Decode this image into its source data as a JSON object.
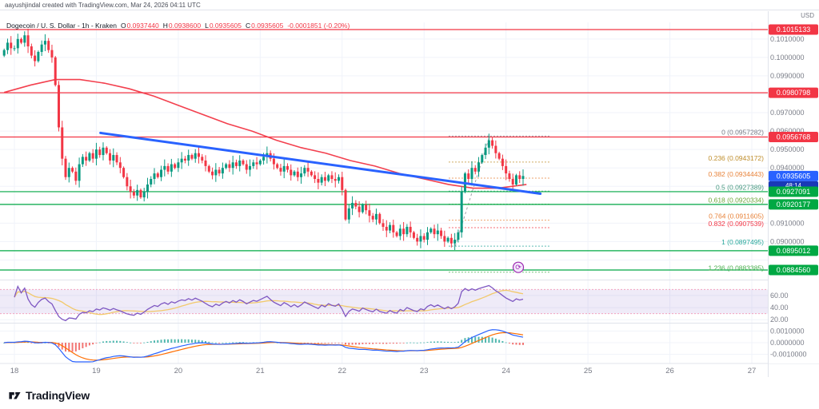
{
  "attribution": "aayushjindal created with TradingView.com, Mar 24, 2026 04:11 UTC",
  "legend": {
    "title": "Dogecoin / U. S. Dollar - 1h - Kraken",
    "ohlc": [
      {
        "label": "O",
        "value": "0.0937440"
      },
      {
        "label": "H",
        "value": "0.0938600"
      },
      {
        "label": "L",
        "value": "0.0935605"
      },
      {
        "label": "C",
        "value": "0.0935605"
      }
    ],
    "change": "-0.0001851 (-0.20%)"
  },
  "price_scale": {
    "currency": "USD",
    "ticks": [
      0.101,
      0.1,
      0.099,
      0.097,
      0.096,
      0.095,
      0.094,
      0.093,
      0.091,
      0.09
    ],
    "rsi_ticks": [
      {
        "v": 60,
        "label": "60.00"
      },
      {
        "v": 40,
        "label": "40.00"
      },
      {
        "v": 20,
        "label": "20.00"
      }
    ],
    "macd_ticks": [
      {
        "v": 0.001,
        "label": "0.0010000"
      },
      {
        "v": 0,
        "label": "0.0000000"
      },
      {
        "v": -0.001,
        "label": "-0.0010000"
      }
    ],
    "badges": [
      {
        "name": "badge-resistance-1",
        "value": "0.1015133",
        "price": 0.1015133,
        "color": "#f23645"
      },
      {
        "name": "badge-resistance-2",
        "value": "0.0980798",
        "price": 0.0980798,
        "color": "#f23645"
      },
      {
        "name": "badge-resistance-3",
        "value": "0.0956768",
        "price": 0.0956768,
        "color": "#f23645"
      },
      {
        "name": "badge-last-price",
        "value": "0.0935605",
        "price": 0.0935605,
        "color": "#2962ff",
        "countdown": "48:14",
        "countdown_bg": "#1939b7"
      },
      {
        "name": "badge-support-1",
        "value": "0.0927091",
        "price": 0.0927091,
        "color": "#00a843"
      },
      {
        "name": "badge-support-2",
        "value": "0.0920177",
        "price": 0.0920177,
        "color": "#00a843"
      },
      {
        "name": "badge-support-3",
        "value": "0.0895012",
        "price": 0.0895012,
        "color": "#00a843"
      },
      {
        "name": "badge-support-4",
        "value": "0.0884560",
        "price": 0.088456,
        "color": "#00a843"
      }
    ]
  },
  "time_scale": {
    "labels": [
      "18",
      "19",
      "20",
      "21",
      "22",
      "23",
      "24",
      "25",
      "26",
      "27"
    ]
  },
  "chart_data": {
    "type": "candlestick",
    "title": "Dogecoin / U. S. Dollar - 1h - Kraken",
    "interval": "1h",
    "x_axis_days": [
      18,
      27
    ],
    "price_range_visible": [
      0.0878,
      0.1019
    ],
    "t0": 17.875,
    "candles_per_day": 24,
    "first_open": 0.1001,
    "closes": [
      0.1004,
      0.1008,
      0.1005,
      0.1005,
      0.101,
      0.1008,
      0.1012,
      0.1006,
      0.1001,
      0.0998,
      0.1003,
      0.1007,
      0.1009,
      0.1004,
      0.1,
      0.0985,
      0.0962,
      0.0945,
      0.0935,
      0.094,
      0.0938,
      0.0933,
      0.0942,
      0.0946,
      0.0944,
      0.0948,
      0.0945,
      0.095,
      0.0947,
      0.0951,
      0.0948,
      0.0944,
      0.0947,
      0.0943,
      0.094,
      0.0935,
      0.093,
      0.0927,
      0.0925,
      0.0928,
      0.0924,
      0.0927,
      0.0931,
      0.0934,
      0.0937,
      0.0935,
      0.0939,
      0.0941,
      0.0938,
      0.0942,
      0.094,
      0.0943,
      0.0945,
      0.0944,
      0.0947,
      0.0945,
      0.0948,
      0.0946,
      0.0944,
      0.0941,
      0.0938,
      0.0936,
      0.0939,
      0.0937,
      0.094,
      0.0942,
      0.094,
      0.0943,
      0.0941,
      0.0944,
      0.0942,
      0.0939,
      0.0941,
      0.0943,
      0.0942,
      0.0944,
      0.0946,
      0.0948,
      0.0945,
      0.0942,
      0.094,
      0.0938,
      0.0941,
      0.0939,
      0.0936,
      0.0938,
      0.0935,
      0.0937,
      0.094,
      0.0938,
      0.0936,
      0.0934,
      0.0932,
      0.0935,
      0.0933,
      0.0936,
      0.0934,
      0.0933,
      0.0935,
      0.0928,
      0.0912,
      0.0918,
      0.0921,
      0.0919,
      0.0916,
      0.092,
      0.0917,
      0.0914,
      0.0912,
      0.0915,
      0.091,
      0.0908,
      0.0906,
      0.0909,
      0.0905,
      0.0903,
      0.0907,
      0.0904,
      0.0908,
      0.0905,
      0.0902,
      0.09,
      0.0903,
      0.0901,
      0.0905,
      0.0907,
      0.0904,
      0.0906,
      0.0903,
      0.09,
      0.0902,
      0.0899,
      0.0901,
      0.0905,
      0.0927,
      0.0937,
      0.0934,
      0.094,
      0.0938,
      0.0943,
      0.0947,
      0.0951,
      0.0955,
      0.0952,
      0.0948,
      0.0945,
      0.0941,
      0.0937,
      0.0934,
      0.0931,
      0.0936,
      0.0934,
      0.0935605
    ],
    "candle_colors": {
      "up": "#089981",
      "down": "#f23645"
    },
    "levels": {
      "resistance": [
        {
          "price": 0.1015133,
          "color": "#f23645"
        },
        {
          "price": 0.0980798,
          "color": "#f23645"
        },
        {
          "price": 0.0956768,
          "color": "#f23645"
        }
      ],
      "support": [
        {
          "price": 0.0927091,
          "color": "#00a843"
        },
        {
          "price": 0.0920177,
          "color": "#00a843"
        },
        {
          "price": 0.0895012,
          "color": "#00a843"
        },
        {
          "price": 0.088456,
          "color": "#00a843"
        }
      ]
    },
    "fib_levels": [
      {
        "label": "0 (0.0957282)",
        "price": 0.0957282,
        "color": "#787b86"
      },
      {
        "label": "0.236 (0.0943172)",
        "price": 0.0943172,
        "color": "#bf8e2c"
      },
      {
        "label": "0.382 (0.0934443)",
        "price": 0.0934443,
        "color": "#e8833a"
      },
      {
        "label": "0.5 (0.0927389)",
        "price": 0.0927389,
        "color": "#489981"
      },
      {
        "label": "0.618 (0.0920334)",
        "price": 0.0920334,
        "color": "#6fa83b"
      },
      {
        "label": "0.764 (0.0911605)",
        "price": 0.0911605,
        "color": "#e8833a"
      },
      {
        "label": "0.832 (0.0907539)",
        "price": 0.0907539,
        "color": "#f23645"
      },
      {
        "label": "1 (0.0897495)",
        "price": 0.0897495,
        "color": "#26a69a"
      },
      {
        "label": "1.236 (0.0883385)",
        "price": 0.0883385,
        "color": "#4caf50"
      }
    ],
    "fib_range_days": [
      23.3,
      24.55
    ],
    "fib_anchor": {
      "low_t": 23.38,
      "low_p": 0.0897495,
      "high_t": 23.8,
      "high_p": 0.0957282
    },
    "ma_line": {
      "color": "#f23645",
      "points": [
        [
          17.875,
          0.0981
        ],
        [
          18.2,
          0.0985
        ],
        [
          18.5,
          0.0988
        ],
        [
          18.8,
          0.0988
        ],
        [
          19.1,
          0.0986
        ],
        [
          19.4,
          0.0983
        ],
        [
          19.7,
          0.0979
        ],
        [
          20.0,
          0.0974
        ],
        [
          20.3,
          0.0969
        ],
        [
          20.6,
          0.0964
        ],
        [
          20.9,
          0.096
        ],
        [
          21.2,
          0.0955
        ],
        [
          21.5,
          0.0951
        ],
        [
          21.8,
          0.0948
        ],
        [
          22.1,
          0.0944
        ],
        [
          22.4,
          0.0941
        ],
        [
          22.7,
          0.0937
        ],
        [
          23.0,
          0.0934
        ],
        [
          23.3,
          0.0931
        ],
        [
          23.6,
          0.0929
        ],
        [
          23.9,
          0.0929
        ],
        [
          24.25,
          0.0931
        ]
      ]
    },
    "trendline": {
      "color": "#2962ff",
      "from": [
        19.05,
        0.0959
      ],
      "to": [
        24.42,
        0.0926
      ]
    },
    "rsi": {
      "period": 14,
      "ma_period": 14,
      "band": [
        30,
        70
      ],
      "line_color": "#7e57c2",
      "ma_color": "#f2c55c",
      "band_fill": "#7e57c2",
      "band_line": "#f48fb1"
    },
    "macd": {
      "fast": 12,
      "slow": 26,
      "signal_period": 9,
      "macd_color": "#2962ff",
      "signal_color": "#ff6d00",
      "hist_up": "#26a69a",
      "hist_down": "#ef5350"
    }
  },
  "annotations": {
    "replay_icon": {
      "t": 24.15,
      "price": 0.0886,
      "color": "#9c27b0"
    }
  },
  "branding": {
    "logo_text": "TradingView"
  }
}
